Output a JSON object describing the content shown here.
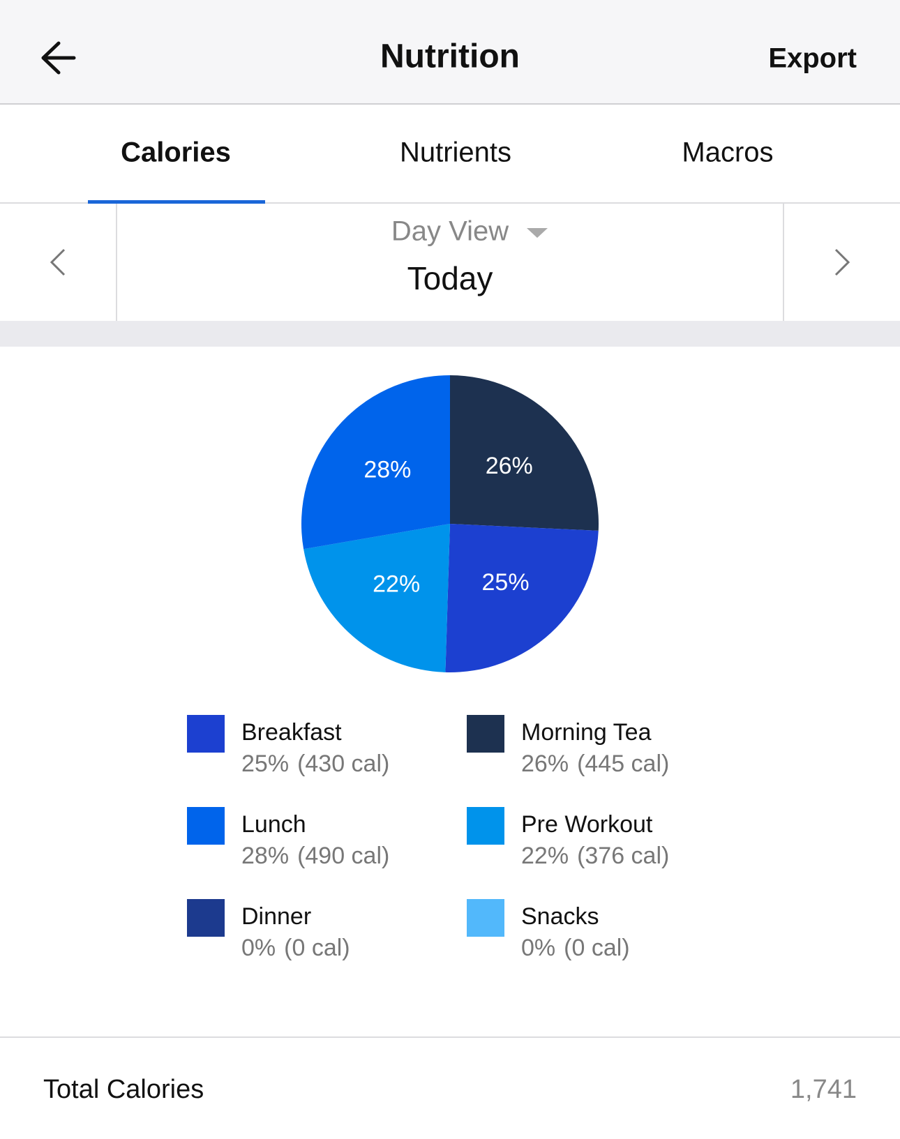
{
  "header": {
    "title": "Nutrition",
    "action": "Export"
  },
  "tabs": [
    "Calories",
    "Nutrients",
    "Macros"
  ],
  "day_selector": {
    "view": "Day View",
    "period": "Today"
  },
  "chart_data": {
    "type": "pie",
    "categories": [
      "Breakfast",
      "Morning Tea",
      "Lunch",
      "Pre Workout",
      "Dinner",
      "Snacks"
    ],
    "values": [
      25,
      26,
      28,
      22,
      0,
      0
    ],
    "value_labels": [
      "25%",
      "26%",
      "28%",
      "22%",
      "0%",
      "0%"
    ],
    "legend_details": [
      "(430 cal)",
      "(445 cal)",
      "(490 cal)",
      "(376 cal)",
      "(0 cal)",
      "(0 cal)"
    ],
    "colors": [
      "#1c40d0",
      "#1d3150",
      "#0064eb",
      "#0093eb",
      "#1c3a8e",
      "#52b8fb"
    ]
  },
  "total": {
    "label": "Total Calories",
    "value": "1,741"
  }
}
